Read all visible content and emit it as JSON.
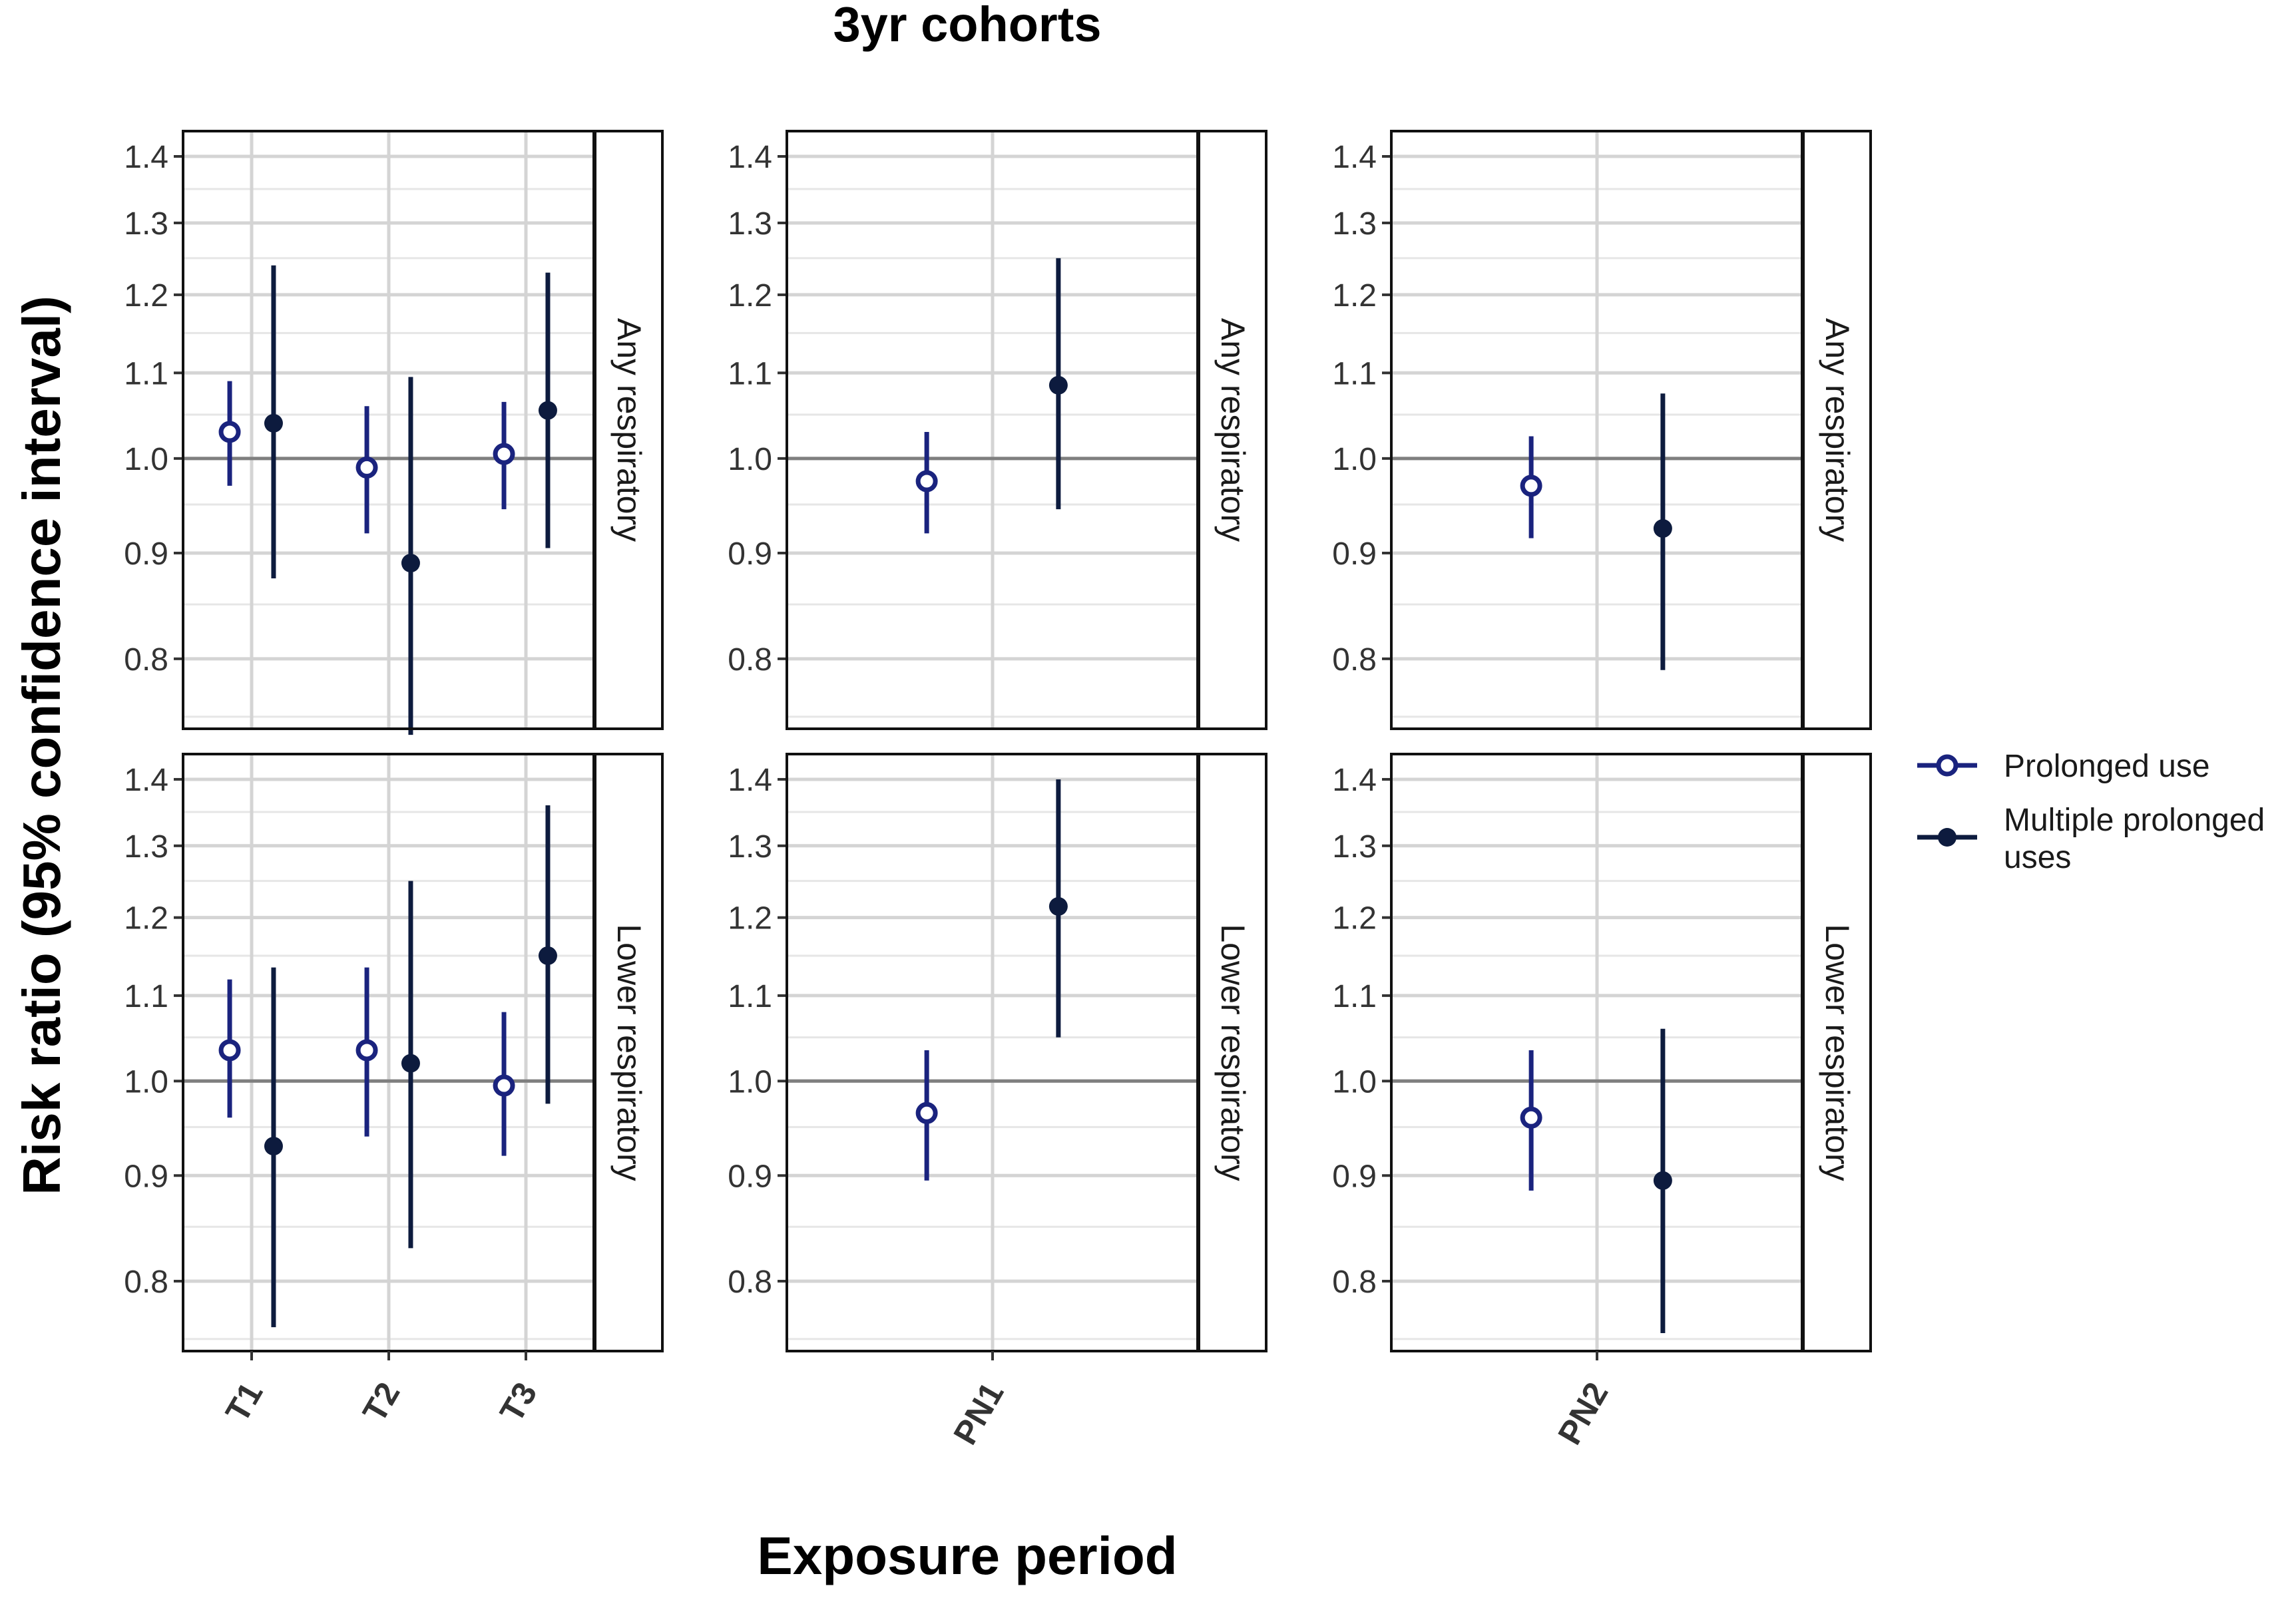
{
  "chart_data": {
    "type": "scatter",
    "subtype": "point-range (faceted)",
    "title": "3yr cohorts",
    "xlabel": "Exposure period",
    "ylabel": "Risk ratio (95% confidence interval)",
    "y_scale": "log",
    "ylim": [
      0.74,
      1.44
    ],
    "y_ticks": [
      0.8,
      0.9,
      1.0,
      1.1,
      1.2,
      1.3,
      1.4
    ],
    "y_tick_labels": [
      "0.8",
      "0.9",
      "1.0",
      "1.1",
      "1.2",
      "1.3",
      "1.4"
    ],
    "reference_line": 1.0,
    "grid": true,
    "legend": {
      "position": "right",
      "entries": [
        {
          "name": "Prolonged use",
          "marker": "open-circle",
          "color": "#1a237e"
        },
        {
          "name": "Multiple prolonged uses",
          "marker": "filled-circle",
          "color": "#0d1b3e"
        }
      ]
    },
    "columns": [
      {
        "categories": [
          "T1",
          "T2",
          "T3"
        ]
      },
      {
        "categories": [
          "PN1"
        ]
      },
      {
        "categories": [
          "PN2"
        ]
      }
    ],
    "rows": [
      "Any respiratory",
      "Lower respiratory"
    ],
    "panels": [
      {
        "row": "Any respiratory",
        "col": 0,
        "series": [
          {
            "name": "Prolonged use",
            "points": [
              {
                "x": "T1",
                "y": 1.03,
                "lo": 0.97,
                "hi": 1.09
              },
              {
                "x": "T2",
                "y": 0.99,
                "lo": 0.92,
                "hi": 1.06
              },
              {
                "x": "T3",
                "y": 1.005,
                "lo": 0.945,
                "hi": 1.065
              }
            ]
          },
          {
            "name": "Multiple prolonged uses",
            "points": [
              {
                "x": "T1",
                "y": 1.04,
                "lo": 0.875,
                "hi": 1.24
              },
              {
                "x": "T2",
                "y": 0.89,
                "lo": 0.735,
                "hi": 1.095
              },
              {
                "x": "T3",
                "y": 1.055,
                "lo": 0.905,
                "hi": 1.23
              }
            ]
          }
        ]
      },
      {
        "row": "Any respiratory",
        "col": 1,
        "series": [
          {
            "name": "Prolonged use",
            "points": [
              {
                "x": "PN1",
                "y": 0.975,
                "lo": 0.92,
                "hi": 1.03
              }
            ]
          },
          {
            "name": "Multiple prolonged uses",
            "points": [
              {
                "x": "PN1",
                "y": 1.085,
                "lo": 0.945,
                "hi": 1.25
              }
            ]
          }
        ]
      },
      {
        "row": "Any respiratory",
        "col": 2,
        "series": [
          {
            "name": "Prolonged use",
            "points": [
              {
                "x": "PN2",
                "y": 0.97,
                "lo": 0.915,
                "hi": 1.025
              }
            ]
          },
          {
            "name": "Multiple prolonged uses",
            "points": [
              {
                "x": "PN2",
                "y": 0.925,
                "lo": 0.79,
                "hi": 1.075
              }
            ]
          }
        ]
      },
      {
        "row": "Lower respiratory",
        "col": 0,
        "series": [
          {
            "name": "Prolonged use",
            "points": [
              {
                "x": "T1",
                "y": 1.035,
                "lo": 0.96,
                "hi": 1.12
              },
              {
                "x": "T2",
                "y": 1.035,
                "lo": 0.94,
                "hi": 1.135
              },
              {
                "x": "T3",
                "y": 0.995,
                "lo": 0.92,
                "hi": 1.08
              }
            ]
          },
          {
            "name": "Multiple prolonged uses",
            "points": [
              {
                "x": "T1",
                "y": 0.93,
                "lo": 0.76,
                "hi": 1.135
              },
              {
                "x": "T2",
                "y": 1.02,
                "lo": 0.83,
                "hi": 1.25
              },
              {
                "x": "T3",
                "y": 1.15,
                "lo": 0.975,
                "hi": 1.36
              }
            ]
          }
        ]
      },
      {
        "row": "Lower respiratory",
        "col": 1,
        "series": [
          {
            "name": "Prolonged use",
            "points": [
              {
                "x": "PN1",
                "y": 0.965,
                "lo": 0.895,
                "hi": 1.035
              }
            ]
          },
          {
            "name": "Multiple prolonged uses",
            "points": [
              {
                "x": "PN1",
                "y": 1.215,
                "lo": 1.05,
                "hi": 1.4
              }
            ]
          }
        ]
      },
      {
        "row": "Lower respiratory",
        "col": 2,
        "series": [
          {
            "name": "Prolonged use",
            "points": [
              {
                "x": "PN2",
                "y": 0.96,
                "lo": 0.885,
                "hi": 1.035
              }
            ]
          },
          {
            "name": "Multiple prolonged uses",
            "points": [
              {
                "x": "PN2",
                "y": 0.895,
                "lo": 0.755,
                "hi": 1.06
              }
            ]
          }
        ]
      }
    ],
    "colors": {
      "prolonged": "#1a237e",
      "multiple": "#0d1b3e",
      "grid_major": "#d4d4d4",
      "grid_minor": "#e6e6e6",
      "reference": "#7f7f7f",
      "frame": "#111111"
    }
  }
}
